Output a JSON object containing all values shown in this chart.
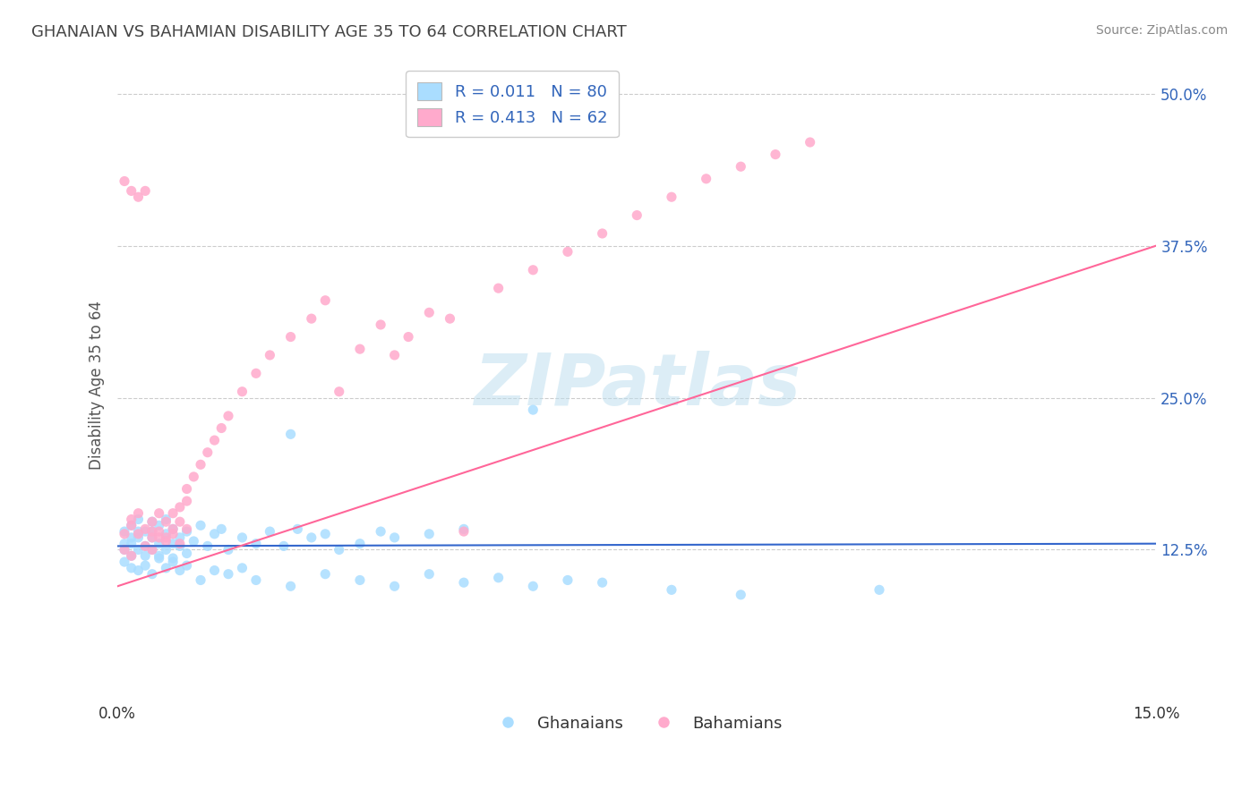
{
  "title": "GHANAIAN VS BAHAMIAN DISABILITY AGE 35 TO 64 CORRELATION CHART",
  "source_text": "Source: ZipAtlas.com",
  "ylabel": "Disability Age 35 to 64",
  "legend_label_1": "Ghanaians",
  "legend_label_2": "Bahamians",
  "r1": 0.011,
  "n1": 80,
  "r2": 0.413,
  "n2": 62,
  "xlim": [
    0.0,
    0.15
  ],
  "ylim": [
    0.0,
    0.52
  ],
  "ytick_positions": [
    0.125,
    0.25,
    0.375,
    0.5
  ],
  "ytick_labels": [
    "12.5%",
    "25.0%",
    "37.5%",
    "50.0%"
  ],
  "color_blue_scatter": "#AADDFF",
  "color_pink_scatter": "#FFAACC",
  "color_blue_line": "#3366CC",
  "color_pink_line": "#FF6699",
  "color_blue_text": "#3366BB",
  "watermark": "ZIPatlas",
  "watermark_color": "#BBDDEE",
  "title_color": "#444444",
  "title_fontsize": 13,
  "source_color": "#888888",
  "ylabel_color": "#555555",
  "blue_trend_x0": 0.0,
  "blue_trend_y0": 0.128,
  "blue_trend_x1": 0.15,
  "blue_trend_y1": 0.13,
  "pink_trend_x0": 0.0,
  "pink_trend_y0": 0.095,
  "pink_trend_x1": 0.15,
  "pink_trend_y1": 0.375,
  "ghanaian_x": [
    0.001,
    0.001,
    0.001,
    0.002,
    0.002,
    0.002,
    0.002,
    0.003,
    0.003,
    0.003,
    0.003,
    0.004,
    0.004,
    0.004,
    0.005,
    0.005,
    0.005,
    0.005,
    0.006,
    0.006,
    0.006,
    0.007,
    0.007,
    0.007,
    0.008,
    0.008,
    0.008,
    0.009,
    0.009,
    0.01,
    0.01,
    0.011,
    0.012,
    0.013,
    0.014,
    0.015,
    0.016,
    0.018,
    0.02,
    0.022,
    0.024,
    0.026,
    0.028,
    0.03,
    0.032,
    0.035,
    0.038,
    0.04,
    0.045,
    0.05,
    0.001,
    0.002,
    0.003,
    0.004,
    0.005,
    0.006,
    0.007,
    0.008,
    0.009,
    0.01,
    0.012,
    0.014,
    0.016,
    0.018,
    0.02,
    0.025,
    0.03,
    0.035,
    0.04,
    0.045,
    0.05,
    0.055,
    0.06,
    0.065,
    0.07,
    0.08,
    0.09,
    0.11,
    0.06,
    0.025
  ],
  "ghanaian_y": [
    0.13,
    0.125,
    0.14,
    0.135,
    0.12,
    0.145,
    0.13,
    0.125,
    0.14,
    0.135,
    0.15,
    0.128,
    0.14,
    0.12,
    0.135,
    0.148,
    0.125,
    0.14,
    0.13,
    0.145,
    0.12,
    0.138,
    0.125,
    0.15,
    0.13,
    0.142,
    0.118,
    0.135,
    0.128,
    0.14,
    0.122,
    0.132,
    0.145,
    0.128,
    0.138,
    0.142,
    0.125,
    0.135,
    0.13,
    0.14,
    0.128,
    0.142,
    0.135,
    0.138,
    0.125,
    0.13,
    0.14,
    0.135,
    0.138,
    0.142,
    0.115,
    0.11,
    0.108,
    0.112,
    0.105,
    0.118,
    0.11,
    0.115,
    0.108,
    0.112,
    0.1,
    0.108,
    0.105,
    0.11,
    0.1,
    0.095,
    0.105,
    0.1,
    0.095,
    0.105,
    0.098,
    0.102,
    0.095,
    0.1,
    0.098,
    0.092,
    0.088,
    0.092,
    0.24,
    0.22
  ],
  "bahamian_x": [
    0.001,
    0.001,
    0.002,
    0.002,
    0.002,
    0.003,
    0.003,
    0.004,
    0.004,
    0.005,
    0.005,
    0.005,
    0.006,
    0.006,
    0.007,
    0.007,
    0.008,
    0.008,
    0.009,
    0.009,
    0.01,
    0.01,
    0.011,
    0.012,
    0.013,
    0.014,
    0.015,
    0.016,
    0.018,
    0.02,
    0.022,
    0.025,
    0.028,
    0.03,
    0.032,
    0.035,
    0.038,
    0.04,
    0.042,
    0.045,
    0.048,
    0.05,
    0.055,
    0.06,
    0.065,
    0.07,
    0.075,
    0.08,
    0.085,
    0.09,
    0.095,
    0.1,
    0.001,
    0.002,
    0.003,
    0.004,
    0.005,
    0.006,
    0.007,
    0.008,
    0.009,
    0.01
  ],
  "bahamian_y": [
    0.138,
    0.125,
    0.145,
    0.12,
    0.15,
    0.138,
    0.155,
    0.128,
    0.142,
    0.135,
    0.148,
    0.125,
    0.14,
    0.155,
    0.135,
    0.148,
    0.142,
    0.155,
    0.148,
    0.16,
    0.165,
    0.175,
    0.185,
    0.195,
    0.205,
    0.215,
    0.225,
    0.235,
    0.255,
    0.27,
    0.285,
    0.3,
    0.315,
    0.33,
    0.255,
    0.29,
    0.31,
    0.285,
    0.3,
    0.32,
    0.315,
    0.14,
    0.34,
    0.355,
    0.37,
    0.385,
    0.4,
    0.415,
    0.43,
    0.44,
    0.45,
    0.46,
    0.428,
    0.42,
    0.415,
    0.42,
    0.14,
    0.135,
    0.132,
    0.138,
    0.13,
    0.142
  ]
}
